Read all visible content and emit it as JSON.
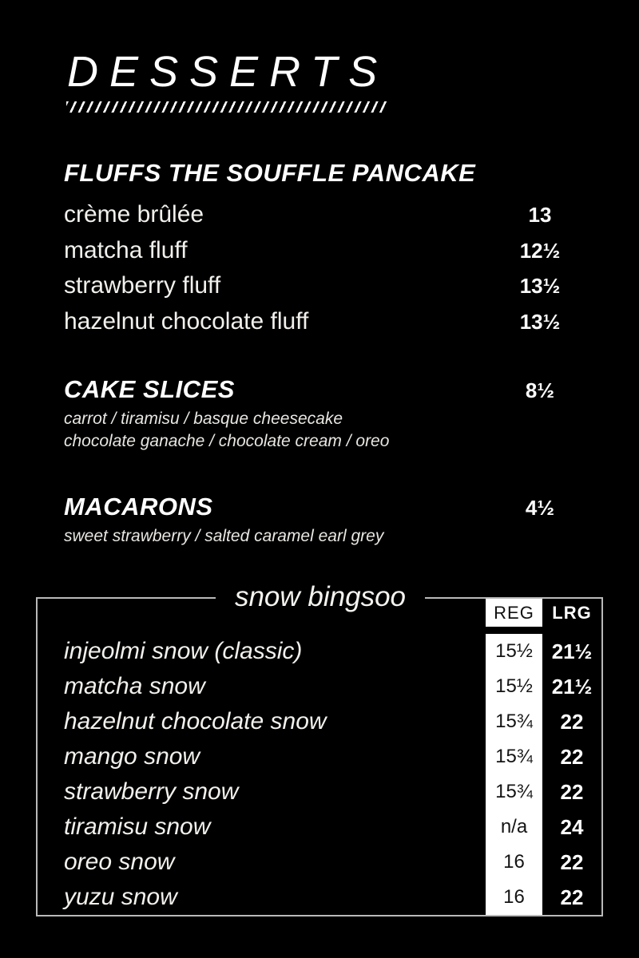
{
  "menu": {
    "title": "DESSERTS",
    "colors": {
      "background": "#000000",
      "text": "#f2f0ec",
      "box_border": "#b9b9b9",
      "reg_column_bg": "#ffffff",
      "reg_column_text": "#141414",
      "lrg_column_bg": "#000000",
      "lrg_column_text": "#ffffff"
    },
    "fluffs": {
      "heading": "FLUFFS THE SOUFFLE PANCAKE",
      "items": [
        {
          "name": "crème brûlée",
          "price": "13"
        },
        {
          "name": "matcha fluff",
          "price": "12½"
        },
        {
          "name": "strawberry fluff",
          "price": "13½"
        },
        {
          "name": "hazelnut chocolate fluff",
          "price": "13½"
        }
      ]
    },
    "cake_slices": {
      "heading": "CAKE SLICES",
      "price": "8½",
      "description_line1": "carrot / tiramisu / basque cheesecake",
      "description_line2": "chocolate ganache / chocolate cream / oreo"
    },
    "macarons": {
      "heading": "MACARONS",
      "price": "4½",
      "description": "sweet strawberry / salted caramel earl grey"
    },
    "bingsoo": {
      "title": "snow bingsoo",
      "col_reg": "REG",
      "col_lrg": "LRG",
      "items": [
        {
          "name": "injeolmi snow (classic)",
          "reg": "15½",
          "lrg": "21½"
        },
        {
          "name": "matcha snow",
          "reg": "15½",
          "lrg": "21½"
        },
        {
          "name": "hazelnut chocolate snow",
          "reg": "15¾",
          "lrg": "22"
        },
        {
          "name": "mango snow",
          "reg": "15¾",
          "lrg": "22"
        },
        {
          "name": "strawberry snow",
          "reg": "15¾",
          "lrg": "22"
        },
        {
          "name": "tiramisu snow",
          "reg": "n/a",
          "lrg": "24"
        },
        {
          "name": "oreo snow",
          "reg": "16",
          "lrg": "22"
        },
        {
          "name": "yuzu snow",
          "reg": "16",
          "lrg": "22"
        }
      ]
    }
  }
}
